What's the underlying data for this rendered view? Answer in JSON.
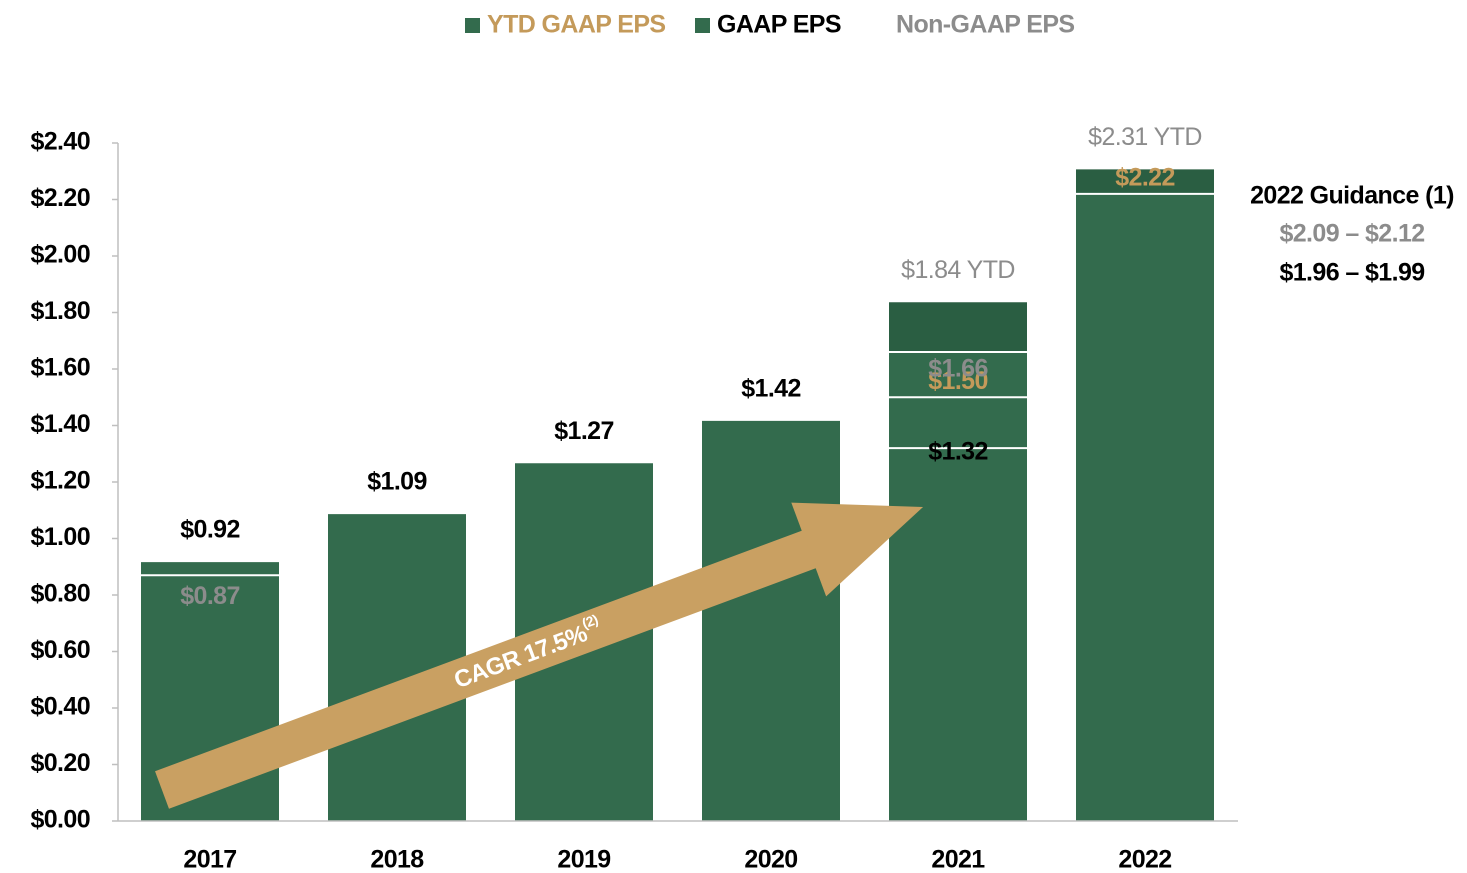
{
  "chart_data": {
    "type": "bar",
    "categories": [
      "2017",
      "2018",
      "2019",
      "2020",
      "2021",
      "2022"
    ],
    "series": [
      {
        "name": "YTD GAAP EPS",
        "color": "#c49a5a",
        "marker": true,
        "values": [
          null,
          null,
          null,
          null,
          1.5,
          2.22
        ],
        "value_labels": [
          null,
          null,
          null,
          null,
          "$1.50",
          "$2.22"
        ]
      },
      {
        "name": "GAAP EPS",
        "color": "#000000",
        "marker": true,
        "values": [
          0.92,
          1.09,
          1.27,
          1.42,
          1.32,
          null
        ],
        "value_labels": [
          "$0.92",
          "$1.09",
          "$1.27",
          "$1.42",
          "$1.32",
          null
        ]
      },
      {
        "name": "Non-GAAP EPS",
        "color": "#8c8c8c",
        "marker": false,
        "values": [
          0.87,
          null,
          null,
          null,
          1.66,
          null
        ],
        "value_labels": [
          "$0.87",
          null,
          null,
          null,
          "$1.66",
          null
        ]
      }
    ],
    "ytd_totals": {
      "color": "#8c8c8c",
      "values": [
        null,
        null,
        null,
        null,
        1.84,
        2.31
      ],
      "value_labels": [
        null,
        null,
        null,
        null,
        "$1.84 YTD",
        "$2.31 YTD"
      ]
    },
    "bar_color": "#336b4d",
    "ytd_bar_color": "#2a5e42",
    "marker_color": "#336b4d",
    "ylim": [
      0,
      2.4
    ],
    "yticks": [
      {
        "value": 0,
        "label": "$0.00"
      },
      {
        "value": 0.2,
        "label": "$0.20"
      },
      {
        "value": 0.4,
        "label": "$0.40"
      },
      {
        "value": 0.6,
        "label": "$0.60"
      },
      {
        "value": 0.8,
        "label": "$0.80"
      },
      {
        "value": 1.0,
        "label": "$1.00"
      },
      {
        "value": 1.2,
        "label": "$1.20"
      },
      {
        "value": 1.4,
        "label": "$1.40"
      },
      {
        "value": 1.6,
        "label": "$1.60"
      },
      {
        "value": 1.8,
        "label": "$1.80"
      },
      {
        "value": 2.0,
        "label": "$2.00"
      },
      {
        "value": 2.2,
        "label": "$2.20"
      },
      {
        "value": 2.4,
        "label": "$2.40"
      }
    ],
    "annotations": {
      "guidance_title": "2022 Guidance (1)",
      "guidance_non_gaap": "$2.09 – $2.12",
      "guidance_gaap": "$1.96 – $1.99",
      "cagr": "CAGR 17.5%",
      "cagr_note": "(2)"
    }
  }
}
